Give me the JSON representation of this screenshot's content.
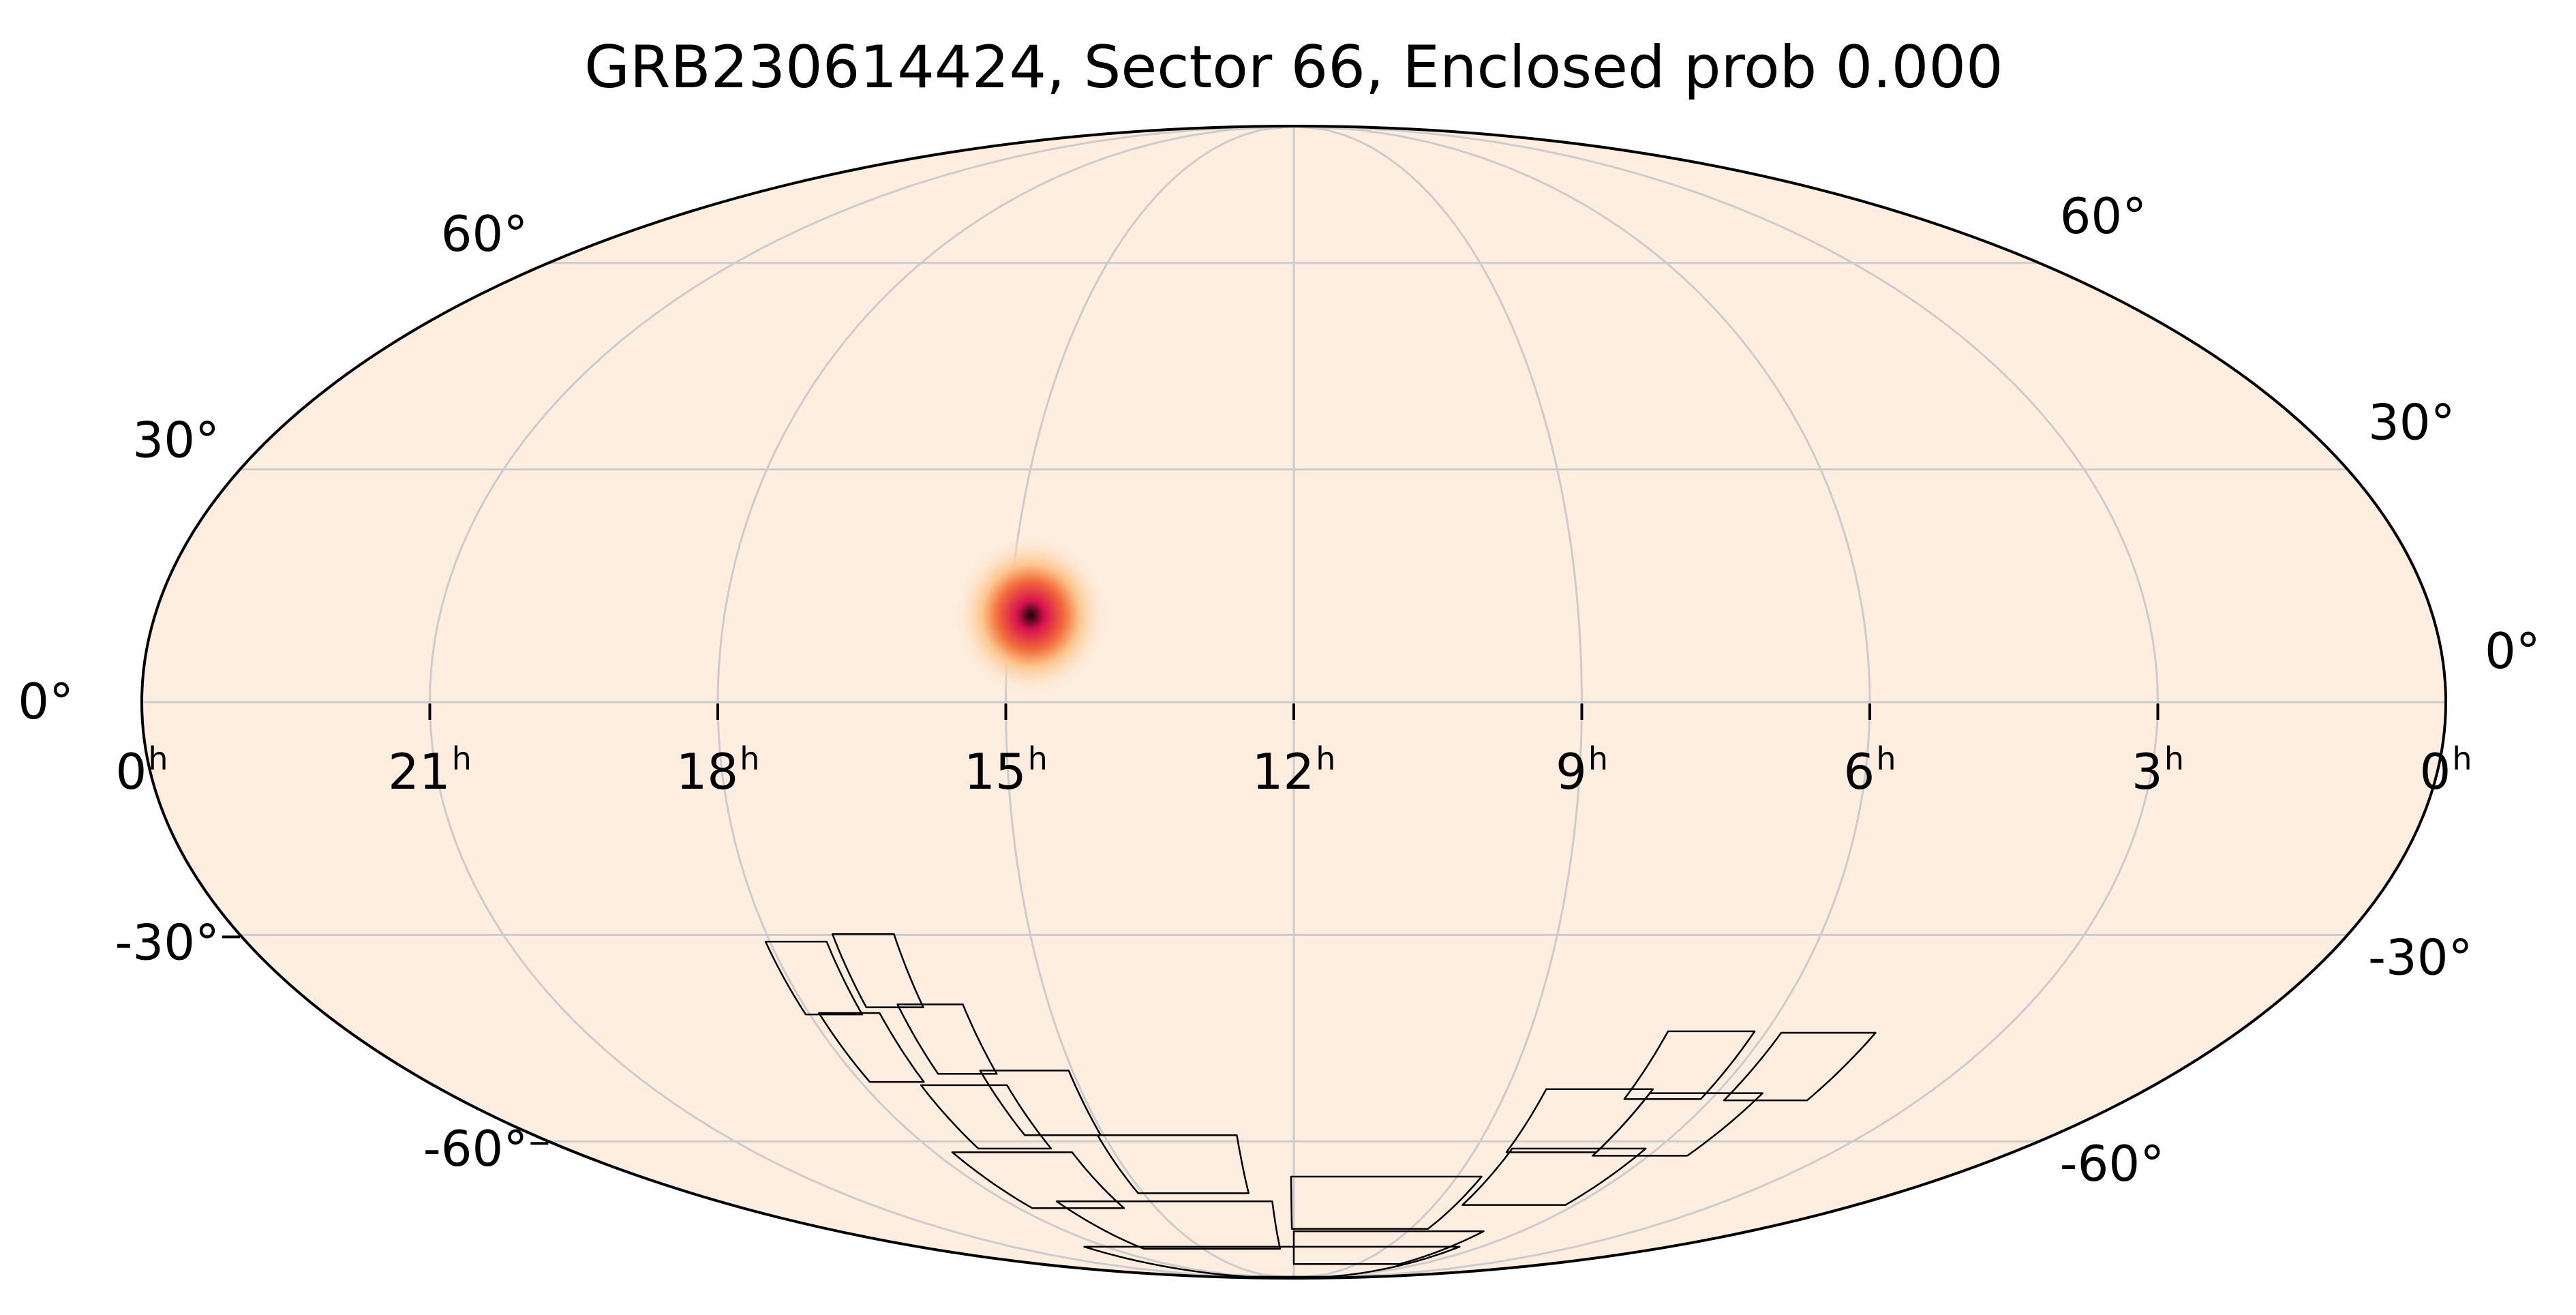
{
  "chart_data": {
    "type": "heatmap",
    "projection": "mollweide",
    "title": "GRB230614424, Sector 66, Enclosed prob 0.000",
    "colors": {
      "background": "#fdeee0",
      "grid": "#cccccc",
      "outline": "#000000",
      "footprint": "#000000",
      "hotspot_core": "#1a0208",
      "hotspot_mid": "#d8124f",
      "hotspot_outer": "#f26a3a",
      "hotspot_halo": "#fcc58a"
    },
    "ra_ticks": [
      {
        "ra_h": 24,
        "label": "0",
        "sup": "h"
      },
      {
        "ra_h": 21,
        "label": "21",
        "sup": "h"
      },
      {
        "ra_h": 18,
        "label": "18",
        "sup": "h"
      },
      {
        "ra_h": 15,
        "label": "15",
        "sup": "h"
      },
      {
        "ra_h": 12,
        "label": "12",
        "sup": "h"
      },
      {
        "ra_h": 9,
        "label": "9",
        "sup": "h"
      },
      {
        "ra_h": 6,
        "label": "6",
        "sup": "h"
      },
      {
        "ra_h": 3,
        "label": "3",
        "sup": "h"
      },
      {
        "ra_h": 0,
        "label": "0",
        "sup": "h"
      }
    ],
    "dec_ticks_left": [
      {
        "dec": 60,
        "label": "60°"
      },
      {
        "dec": 30,
        "label": "30°"
      },
      {
        "dec": 0,
        "label": "0°"
      },
      {
        "dec": -30,
        "label": "-30°"
      },
      {
        "dec": -60,
        "label": "-60°"
      }
    ],
    "dec_ticks_right": [
      {
        "dec": 60,
        "label": "60°"
      },
      {
        "dec": 30,
        "label": "30°"
      },
      {
        "dec": 0,
        "label": "0°"
      },
      {
        "dec": -30,
        "label": "-30°"
      },
      {
        "dec": -60,
        "label": "-60°"
      }
    ],
    "grid_ra_h": [
      21,
      18,
      15,
      12,
      9,
      6,
      3
    ],
    "grid_dec": [
      -60,
      -30,
      0,
      30,
      60
    ],
    "hotspot": {
      "ra_h": 14.77,
      "dec": 11,
      "sigma_deg": 4
    },
    "footprints": [
      {
        "ra_h": 17.7,
        "dec": -35.9,
        "dra_h": 0.7,
        "ddec": 10
      },
      {
        "ra_h": 16.9,
        "dec": -34.9,
        "dra_h": 0.7,
        "ddec": 10
      },
      {
        "ra_h": 17.5,
        "dec": -45.7,
        "dra_h": 0.75,
        "ddec": 10
      },
      {
        "ra_h": 16.45,
        "dec": -44.5,
        "dra_h": 0.8,
        "ddec": 10
      },
      {
        "ra_h": 16.6,
        "dec": -56.2,
        "dra_h": 1.2,
        "ddec": 10
      },
      {
        "ra_h": 15.65,
        "dec": -54,
        "dra_h": 1.2,
        "ddec": 10
      },
      {
        "ra_h": 16.7,
        "dec": -66.8,
        "dra_h": 2.0,
        "ddec": 10
      },
      {
        "ra_h": 14.0,
        "dec": -64,
        "dra_h": 2.2,
        "ddec": 10
      },
      {
        "ra_h": 14.7,
        "dec": -75.5,
        "dra_h": 4.5,
        "ddec": 10
      },
      {
        "ra_h": 10.3,
        "dec": -71,
        "dra_h": 3.5,
        "ddec": 10
      },
      {
        "ra_h": 7.3,
        "dec": -66.2,
        "dra_h": 2.2,
        "ddec": 10
      },
      {
        "ra_h": 6.15,
        "dec": -57.4,
        "dra_h": 1.6,
        "ddec": 10
      },
      {
        "ra_h": 7.7,
        "dec": -56.8,
        "dra_h": 1.5,
        "ddec": 10
      },
      {
        "ra_h": 5.2,
        "dec": -48.5,
        "dra_h": 1.2,
        "ddec": 10
      },
      {
        "ra_h": 6.7,
        "dec": -48.3,
        "dra_h": 1.1,
        "ddec": 10
      },
      {
        "ra_h": 12.7,
        "dec": -84.5,
        "dra_h": 12.0,
        "ddec": 9
      },
      {
        "ra_h": 9.5,
        "dec": -80.5,
        "dra_h": 5.0,
        "ddec": 8
      }
    ]
  }
}
